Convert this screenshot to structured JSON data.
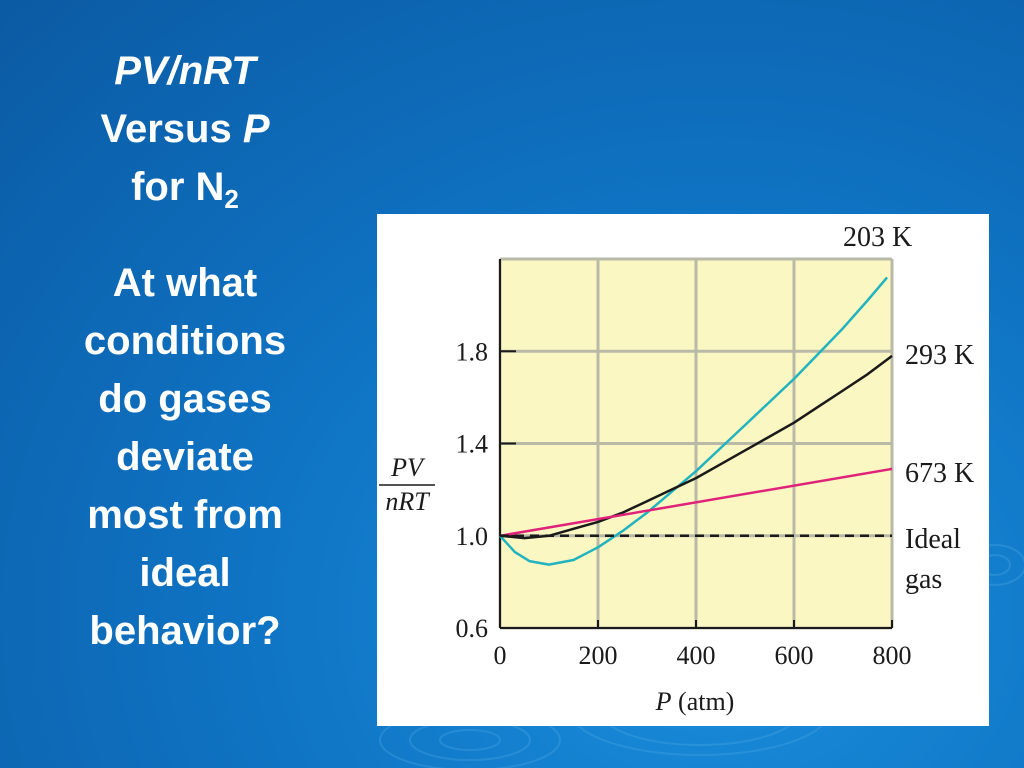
{
  "slide": {
    "title_line1": "PV/nRT",
    "title_line2_a": "Versus ",
    "title_line2_b": "P",
    "title_line3_a": "for N",
    "title_line3_sub": "2",
    "question_lines": [
      "At what",
      "conditions",
      "do gases",
      "deviate",
      "most from",
      "ideal",
      "behavior?"
    ]
  },
  "colors": {
    "background": "#0f74c4",
    "plot_bg": "#fbf7c2",
    "series_203": "#22b3bf",
    "series_293": "#1a1a1a",
    "series_673": "#e0237a",
    "ideal": "#1a1a1a"
  },
  "chart_data": {
    "type": "line",
    "xlabel_var": "P",
    "xlabel_unit": "(atm)",
    "ylabel_top": "PV",
    "ylabel_bottom": "nRT",
    "xlim": [
      0,
      800
    ],
    "ylim": [
      0.6,
      2.2
    ],
    "x_ticks": [
      "0",
      "200",
      "400",
      "600",
      "800"
    ],
    "x_tick_values": [
      0,
      200,
      400,
      600,
      800
    ],
    "y_ticks": [
      "0.6",
      "1.0",
      "1.4",
      "1.8"
    ],
    "y_tick_values": [
      0.6,
      1.0,
      1.4,
      1.8
    ],
    "grid": true,
    "series": [
      {
        "name": "203 K",
        "color": "#22b3bf",
        "x": [
          0,
          30,
          60,
          100,
          150,
          200,
          250,
          300,
          350,
          400,
          450,
          500,
          550,
          600,
          650,
          700,
          750,
          790
        ],
        "y": [
          1.0,
          0.93,
          0.89,
          0.875,
          0.895,
          0.95,
          1.02,
          1.1,
          1.19,
          1.28,
          1.38,
          1.48,
          1.58,
          1.68,
          1.79,
          1.9,
          2.02,
          2.12
        ]
      },
      {
        "name": "293 K",
        "color": "#1a1a1a",
        "x": [
          0,
          50,
          100,
          150,
          200,
          250,
          300,
          350,
          400,
          450,
          500,
          550,
          600,
          650,
          700,
          750,
          800
        ],
        "y": [
          1.0,
          0.99,
          1.0,
          1.03,
          1.06,
          1.1,
          1.15,
          1.2,
          1.25,
          1.31,
          1.37,
          1.43,
          1.49,
          1.56,
          1.63,
          1.7,
          1.78
        ]
      },
      {
        "name": "673 K",
        "color": "#e0237a",
        "x": [
          0,
          800
        ],
        "y": [
          1.0,
          1.29
        ]
      },
      {
        "name": "Ideal gas",
        "color": "#1a1a1a",
        "dashed": true,
        "x": [
          0,
          800
        ],
        "y": [
          1.0,
          1.0
        ]
      }
    ],
    "series_labels": [
      "203 K",
      "293 K",
      "673 K",
      "Ideal",
      "gas"
    ]
  }
}
